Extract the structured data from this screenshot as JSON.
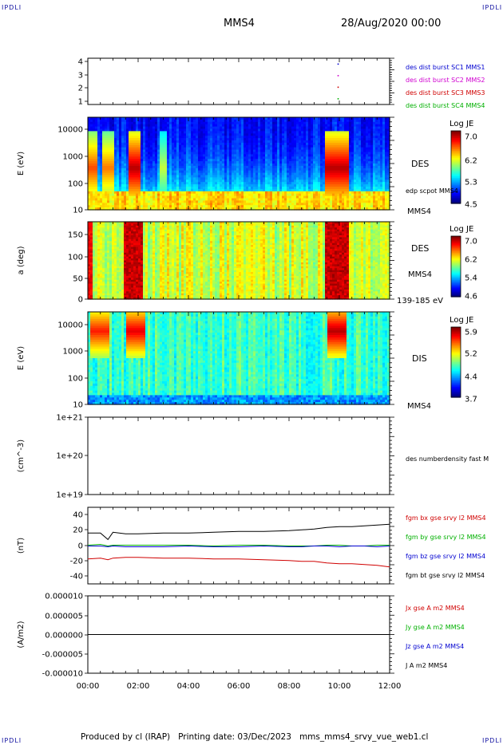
{
  "header": {
    "corner_label": "IPDLI",
    "spacecraft": "MMS4",
    "datetime": "28/Aug/2020 00:00"
  },
  "footer": {
    "produced_by": "Produced by cl (IRAP)",
    "printing_date": "Printing date: 03/Dec/2023",
    "filename": "mms_mms4_srvy_vue_web1.cl"
  },
  "x_axis": {
    "ticks": [
      "00:00",
      "02:00",
      "04:00",
      "06:00",
      "08:00",
      "10:00",
      "12:00"
    ],
    "range_hours": [
      0,
      12
    ]
  },
  "colors": {
    "red": "#d00000",
    "green": "#00b000",
    "blue": "#0000d0",
    "magenta": "#d000d0",
    "black": "#000000"
  },
  "chart_data": [
    {
      "type": "scatter",
      "id": "burst",
      "yticks": [
        "4",
        "3",
        "2",
        "1"
      ],
      "ylim": [
        0.5,
        4.5
      ],
      "series": [
        {
          "name": "des dist burst SC1 MMS1",
          "color": "#0000d0",
          "x": [
            9.95
          ],
          "y": [
            4
          ]
        },
        {
          "name": "des dist burst SC2 MMS2",
          "color": "#d000d0",
          "x": [
            9.95
          ],
          "y": [
            3
          ]
        },
        {
          "name": "des dist burst SC3 MMS3",
          "color": "#d00000",
          "x": [
            9.95
          ],
          "y": [
            2
          ]
        },
        {
          "name": "des dist burst SC4 MMS4",
          "color": "#00b000",
          "x": [
            9.95
          ],
          "y": [
            1
          ]
        }
      ]
    },
    {
      "type": "heatmap",
      "id": "des_energy",
      "ylabel": "E (eV)",
      "yscale": "log",
      "yticks": [
        "10000",
        "1000",
        "100",
        "10"
      ],
      "ylim": [
        10,
        30000
      ],
      "instrument": "DES",
      "right_labels": [
        "edp scpot MMS4",
        "MMS4"
      ],
      "colorbar": {
        "title": "Log JE",
        "max": "7.0",
        "ticks": [
          "7.0",
          "6.2",
          "5.3",
          "4.5"
        ]
      },
      "features": [
        {
          "start_h": 0.0,
          "end_h": 0.35,
          "intensity": 0.85
        },
        {
          "start_h": 0.6,
          "end_h": 1.0,
          "intensity": 0.8
        },
        {
          "start_h": 1.6,
          "end_h": 2.1,
          "intensity": 1.0
        },
        {
          "start_h": 2.9,
          "end_h": 3.1,
          "intensity": 0.6
        },
        {
          "start_h": 9.4,
          "end_h": 10.4,
          "intensity": 1.0
        }
      ]
    },
    {
      "type": "heatmap",
      "id": "des_pitch",
      "ylabel": "a (deg)",
      "yticks": [
        "150",
        "100",
        "50",
        "0"
      ],
      "ylim": [
        0,
        180
      ],
      "instrument": "DES",
      "right_labels": [
        "MMS4",
        "139-185 eV"
      ],
      "colorbar": {
        "title": "Log JE",
        "max": "7.0",
        "ticks": [
          "7.0",
          "6.2",
          "5.4",
          "4.6"
        ]
      },
      "features": [
        {
          "start_h": 0.0,
          "end_h": 0.2,
          "intensity": 0.95
        },
        {
          "start_h": 1.4,
          "end_h": 2.2,
          "intensity": 1.0
        },
        {
          "start_h": 9.4,
          "end_h": 10.4,
          "intensity": 1.0
        }
      ]
    },
    {
      "type": "heatmap",
      "id": "dis_energy",
      "ylabel": "E (eV)",
      "yscale": "log",
      "yticks": [
        "10000",
        "1000",
        "100",
        "10"
      ],
      "ylim": [
        10,
        30000
      ],
      "instrument": "DIS",
      "right_labels": [
        "MMS4"
      ],
      "colorbar": {
        "title": "Log JE",
        "max": "5.9",
        "ticks": [
          "5.9",
          "5.2",
          "4.4",
          "3.7"
        ]
      },
      "features": [
        {
          "start_h": 0.1,
          "end_h": 0.9,
          "intensity": 0.9
        },
        {
          "start_h": 1.5,
          "end_h": 2.3,
          "intensity": 0.95
        },
        {
          "start_h": 9.5,
          "end_h": 10.3,
          "intensity": 1.0
        }
      ]
    },
    {
      "type": "line",
      "id": "density",
      "ylabel": "(cm^-3)",
      "yticks": [
        "1e+21",
        "1e+20",
        "1e+19"
      ],
      "series": [
        {
          "name": "des numberdensity fast M",
          "color": "#000000",
          "x": [],
          "y": []
        }
      ]
    },
    {
      "type": "line",
      "id": "fgm",
      "ylabel": "(nT)",
      "yticks": [
        "40",
        "20",
        "0",
        "-20",
        "-40"
      ],
      "ylim": [
        -47,
        48
      ],
      "x": [
        0,
        0.5,
        0.8,
        1.0,
        1.5,
        2,
        3,
        4,
        5,
        6,
        7,
        8,
        8.5,
        9,
        9.5,
        10,
        10.5,
        11,
        11.5,
        12
      ],
      "series": [
        {
          "name": "fgm bx gse srvy l2 MMS4",
          "color": "#d00000",
          "y": [
            -16,
            -15,
            -17,
            -15,
            -14,
            -14,
            -15,
            -15,
            -16,
            -16,
            -17,
            -18,
            -19,
            -19,
            -21,
            -22,
            -22,
            -23,
            -24,
            -26
          ]
        },
        {
          "name": "fgm by gse srvy l2 MMS4",
          "color": "#00b000",
          "y": [
            1,
            2,
            0,
            1,
            1,
            1,
            1,
            1,
            0,
            1,
            1,
            0,
            0,
            0,
            1,
            1,
            0,
            0,
            1,
            1
          ]
        },
        {
          "name": "fgm bz gse srvy l2 MMS4",
          "color": "#0000d0",
          "y": [
            0,
            0,
            -1,
            0,
            -1,
            -1,
            -1,
            0,
            -1,
            -1,
            0,
            -1,
            -1,
            0,
            0,
            -1,
            0,
            0,
            -1,
            0
          ]
        },
        {
          "name": "fgm bt gse srvy l2 MMS4",
          "color": "#000000",
          "y": [
            16,
            16,
            8,
            17,
            15,
            15,
            16,
            16,
            17,
            18,
            18,
            19,
            20,
            21,
            23,
            24,
            24,
            25,
            26,
            27
          ]
        }
      ]
    },
    {
      "type": "line",
      "id": "current",
      "ylabel": "(A/m2)",
      "yticks": [
        "0.000010",
        "0.000005",
        "0.000000",
        "-0.000005",
        "-0.000010"
      ],
      "ylim": [
        -1e-05,
        1e-05
      ],
      "x": [
        0,
        12
      ],
      "series": [
        {
          "name": "Jx gse A m2 MMS4",
          "color": "#d00000",
          "y": [
            0,
            0
          ]
        },
        {
          "name": "Jy gse A m2 MMS4",
          "color": "#00b000",
          "y": [
            0,
            0
          ]
        },
        {
          "name": "Jz gse A m2 MMS4",
          "color": "#0000d0",
          "y": [
            0,
            0
          ]
        },
        {
          "name": "J A m2 MMS4",
          "color": "#000000",
          "y": [
            0,
            0
          ]
        }
      ]
    }
  ]
}
